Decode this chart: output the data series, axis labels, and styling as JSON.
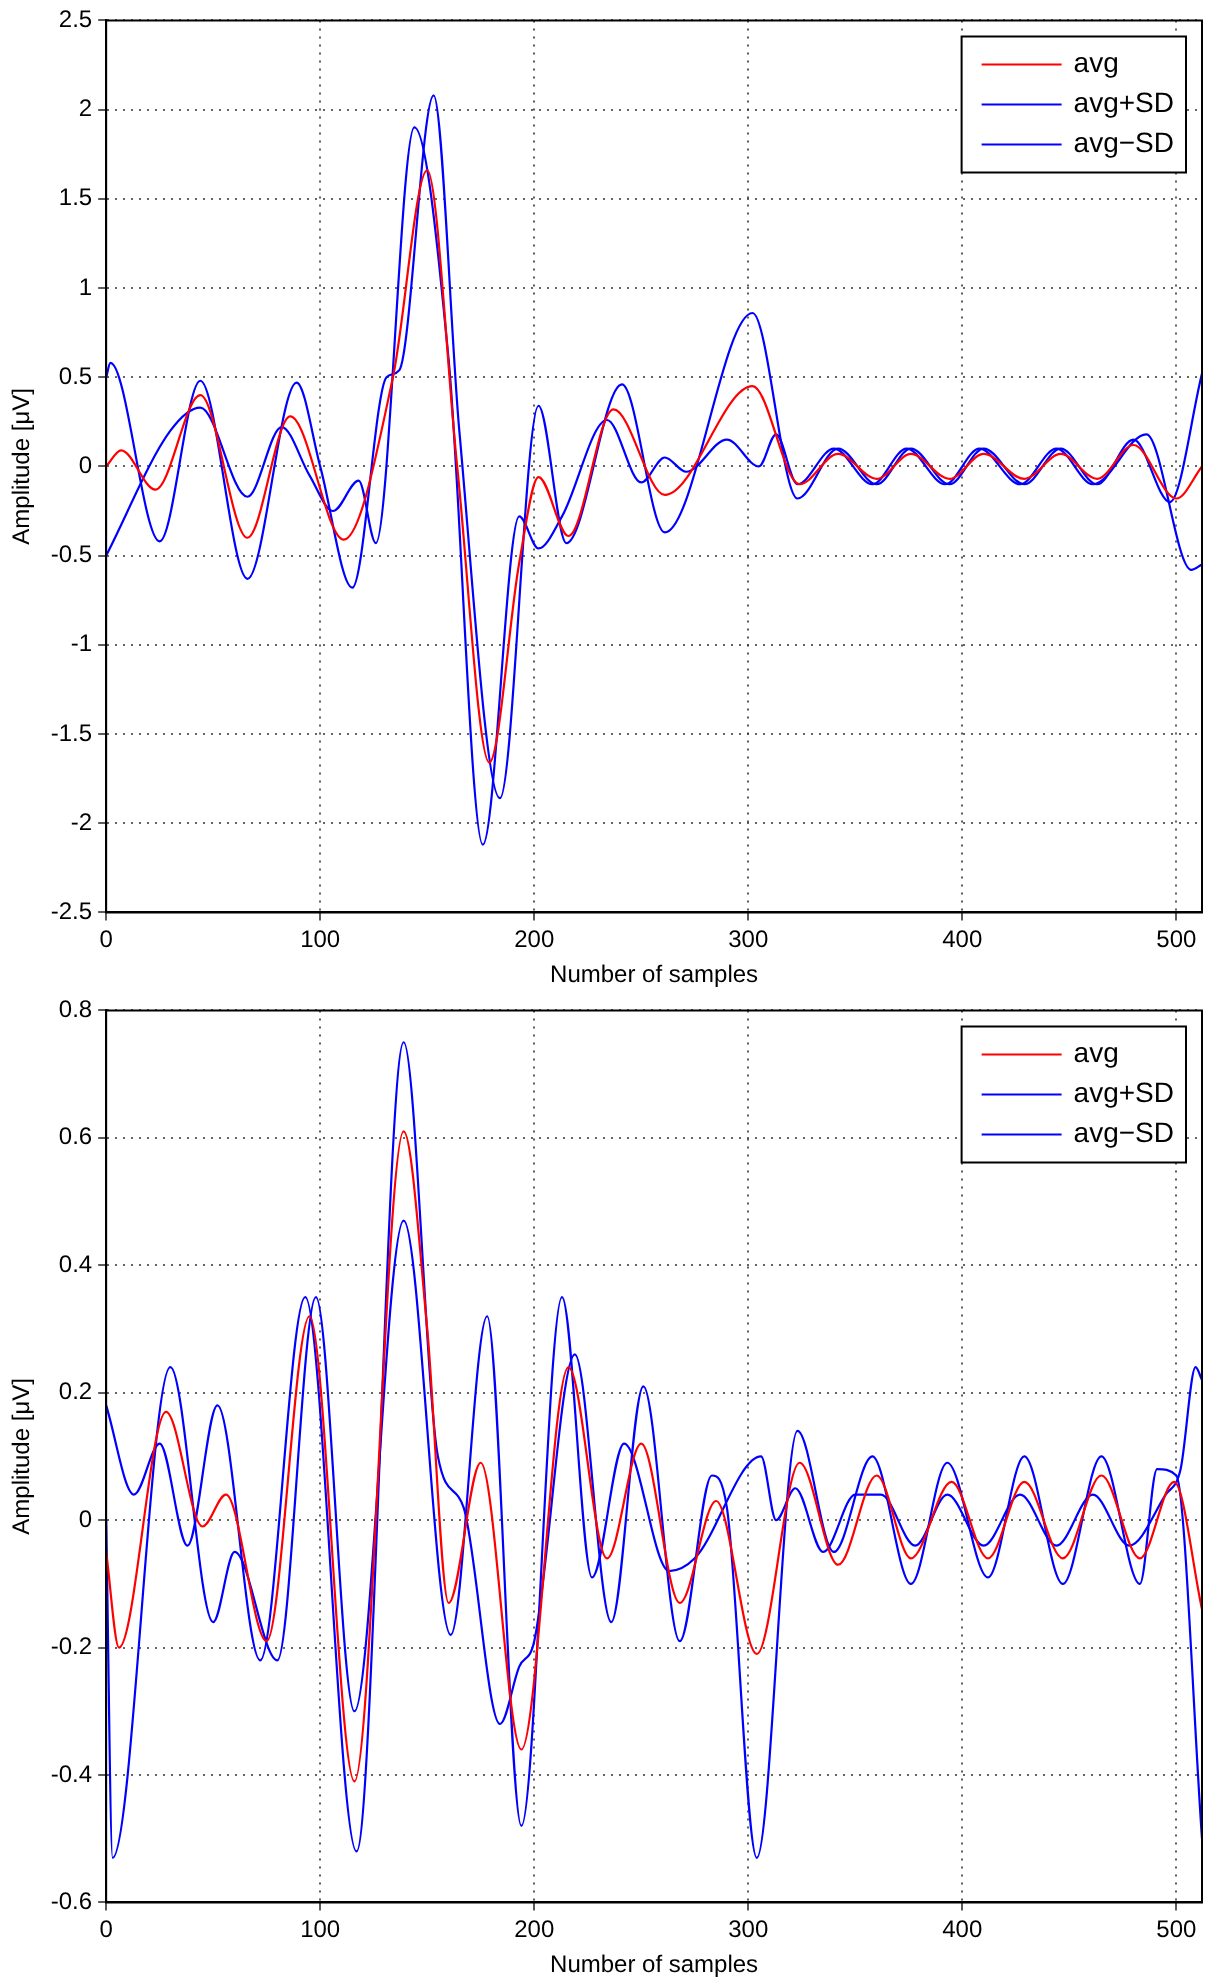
{
  "chart_data": [
    {
      "type": "line",
      "xlabel": "Number of samples",
      "ylabel": "Amplitude [μV]",
      "xlim": [
        0,
        512
      ],
      "xticks": [
        0,
        100,
        200,
        300,
        400,
        500
      ],
      "ylim": [
        -2.5,
        2.5
      ],
      "yticks": [
        -2.5,
        -2,
        -1.5,
        -1,
        -0.5,
        0,
        0.5,
        1,
        1.5,
        2,
        2.5
      ],
      "grid": true,
      "legend": "top right",
      "series": [
        {
          "name": "avg",
          "color": "#ff0000",
          "x": [
            0,
            7,
            23,
            44,
            66,
            86,
            111,
            134,
            150,
            164,
            179,
            193,
            202,
            216,
            237,
            261,
            302,
            324,
            342,
            360,
            376,
            394,
            410,
            429,
            446,
            463,
            480,
            500,
            512
          ],
          "values": [
            0,
            0.09,
            -0.13,
            0.4,
            -0.4,
            0.28,
            -0.41,
            0.5,
            1.66,
            0,
            -1.66,
            -0.54,
            -0.06,
            -0.39,
            0.32,
            -0.16,
            0.45,
            -0.1,
            0.07,
            -0.07,
            0.07,
            -0.07,
            0.07,
            -0.07,
            0.07,
            -0.07,
            0.12,
            -0.18,
            0
          ]
        },
        {
          "name": "avg+SD",
          "color": "#0000ff",
          "x": [
            0,
            2,
            25,
            44,
            66,
            89,
            100,
            115,
            131,
            137,
            153,
            165,
            184,
            202,
            215,
            241,
            261,
            302,
            323,
            342,
            360,
            376,
            394,
            410,
            429,
            446,
            463,
            480,
            497,
            512
          ],
          "values": [
            0.5,
            0.58,
            -0.42,
            0.48,
            -0.63,
            0.47,
            0,
            -0.68,
            0.5,
            0.54,
            2.08,
            0.2,
            -1.86,
            0.34,
            -0.43,
            0.46,
            -0.37,
            0.86,
            -0.18,
            0.1,
            -0.1,
            0.1,
            -0.1,
            0.1,
            -0.1,
            0.1,
            -0.1,
            0.15,
            -0.2,
            0.52
          ]
        },
        {
          "name": "avg−SD",
          "color": "#0000ff",
          "x": [
            0,
            30,
            44,
            66,
            82,
            95,
            106,
            118,
            126,
            144,
            160,
            176,
            193,
            202,
            213,
            234,
            250,
            261,
            271,
            290,
            305,
            313,
            323,
            340,
            358,
            374,
            392,
            408,
            427,
            444,
            461,
            486,
            507,
            512
          ],
          "values": [
            -0.5,
            0.2,
            0.33,
            -0.17,
            0.22,
            -0.05,
            -0.25,
            -0.08,
            -0.43,
            1.9,
            0.6,
            -2.12,
            -0.28,
            -0.46,
            -0.28,
            0.26,
            -0.09,
            0.05,
            -0.03,
            0.15,
            0,
            0.18,
            -0.1,
            0.1,
            -0.1,
            0.1,
            -0.1,
            0.1,
            -0.1,
            0.1,
            -0.1,
            0.18,
            -0.58,
            -0.55
          ]
        }
      ]
    },
    {
      "type": "line",
      "xlabel": "Number of samples",
      "ylabel": "Amplitude [μV]",
      "xlim": [
        0,
        512
      ],
      "xticks": [
        0,
        100,
        200,
        300,
        400,
        500
      ],
      "ylim": [
        -0.6,
        0.8
      ],
      "yticks": [
        -0.6,
        -0.4,
        -0.2,
        0,
        0.2,
        0.4,
        0.6,
        0.8
      ],
      "grid": true,
      "legend": "top right",
      "series": [
        {
          "name": "avg",
          "color": "#ff0000",
          "x": [
            0,
            6,
            28,
            45,
            56,
            75,
            95,
            116,
            139,
            150,
            160,
            175,
            194,
            216,
            234,
            250,
            268,
            285,
            304,
            324,
            342,
            360,
            376,
            395,
            412,
            429,
            447,
            465,
            483,
            499,
            512
          ],
          "values": [
            -0.05,
            -0.2,
            0.17,
            -0.01,
            0.04,
            -0.19,
            0.32,
            -0.41,
            0.61,
            0.3,
            -0.13,
            0.09,
            -0.36,
            0.24,
            -0.06,
            0.12,
            -0.13,
            0.03,
            -0.21,
            0.09,
            -0.07,
            0.07,
            -0.06,
            0.06,
            -0.06,
            0.06,
            -0.06,
            0.07,
            -0.06,
            0.06,
            -0.14
          ]
        },
        {
          "name": "avg+SD",
          "color": "#0000ff",
          "x": [
            0,
            13,
            25,
            38,
            52,
            72,
            93,
            117,
            139,
            155,
            167,
            184,
            193,
            200,
            219,
            236,
            251,
            268,
            283,
            290,
            304,
            323,
            340,
            358,
            376,
            393,
            412,
            429,
            447,
            465,
            483,
            491,
            500,
            512
          ],
          "values": [
            0.18,
            0.04,
            0.12,
            -0.04,
            0.18,
            -0.22,
            0.35,
            -0.52,
            0.75,
            0.1,
            0.02,
            -0.32,
            -0.23,
            -0.19,
            0.26,
            -0.16,
            0.21,
            -0.19,
            0.07,
            0.02,
            -0.53,
            0.14,
            -0.05,
            0.1,
            -0.1,
            0.09,
            -0.09,
            0.1,
            -0.1,
            0.1,
            -0.1,
            0.08,
            0.07,
            -0.5
          ]
        },
        {
          "name": "avg−SD",
          "color": "#0000ff",
          "x": [
            0,
            3,
            30,
            50,
            60,
            80,
            98,
            116,
            139,
            161,
            178,
            194,
            213,
            227,
            242,
            263,
            275,
            306,
            313,
            322,
            335,
            350,
            362,
            378,
            393,
            410,
            427,
            444,
            461,
            478,
            495,
            502,
            509,
            512
          ],
          "values": [
            0,
            -0.53,
            0.24,
            -0.16,
            -0.05,
            -0.22,
            0.35,
            -0.3,
            0.47,
            -0.18,
            0.32,
            -0.48,
            0.35,
            -0.09,
            0.12,
            -0.08,
            -0.06,
            0.1,
            0,
            0.05,
            -0.05,
            0.04,
            0.04,
            -0.04,
            0.04,
            -0.04,
            0.04,
            -0.04,
            0.04,
            -0.04,
            0.04,
            0.08,
            0.24,
            0.22
          ]
        }
      ]
    }
  ]
}
